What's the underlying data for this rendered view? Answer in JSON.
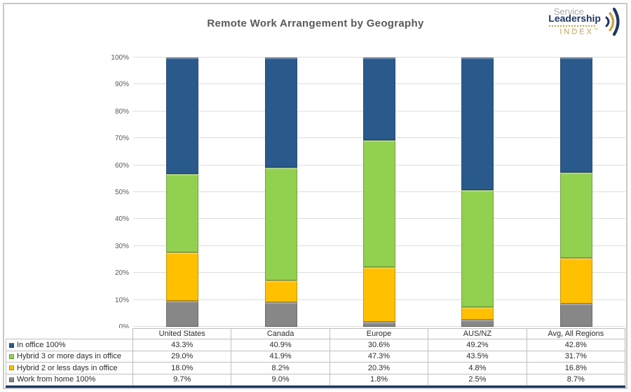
{
  "title": "Remote Work Arrangement by Geography",
  "logo": {
    "service": "Service",
    "leadership": "Leadership",
    "index": "INDEX",
    "trademark": "™"
  },
  "colors": {
    "in_office_blue": "#2a5a8c",
    "hybrid3_green": "#92d050",
    "hybrid2_yellow": "#ffc000",
    "wfh_gray": "#878787",
    "gridline": "#dddddd",
    "axis_text": "#595959",
    "title_text": "#595959",
    "table_border": "#bfbfbf",
    "table_bottom_border": "#17375e",
    "logo_navy": "#1f3864",
    "logo_gold": "#c9a23f",
    "logo_gray": "#ababab"
  },
  "chart_data": {
    "type": "bar",
    "stacked": true,
    "title": "Remote Work Arrangement by Geography",
    "categories": [
      "United States",
      "Canada",
      "Europe",
      "AUS/NZ",
      "Avg, All Regions"
    ],
    "series": [
      {
        "name": "In office 100%",
        "color": "#2a5a8c",
        "values": [
          43.3,
          40.9,
          30.6,
          49.2,
          42.8
        ]
      },
      {
        "name": "Hybrid 3 or more days in office",
        "color": "#92d050",
        "values": [
          29.0,
          41.9,
          47.3,
          43.5,
          31.7
        ]
      },
      {
        "name": "Hybrid 2 or less days in office",
        "color": "#ffc000",
        "values": [
          18.0,
          8.2,
          20.3,
          4.8,
          16.8
        ]
      },
      {
        "name": "Work from home 100%",
        "color": "#878787",
        "values": [
          9.7,
          9.0,
          1.8,
          2.5,
          8.7
        ]
      }
    ],
    "y_axis": {
      "min": 0,
      "max": 100,
      "step": 10,
      "tick_suffix": "%"
    },
    "value_format": "one_decimal_percent",
    "grid": true,
    "legend_position": "data-table-left"
  }
}
